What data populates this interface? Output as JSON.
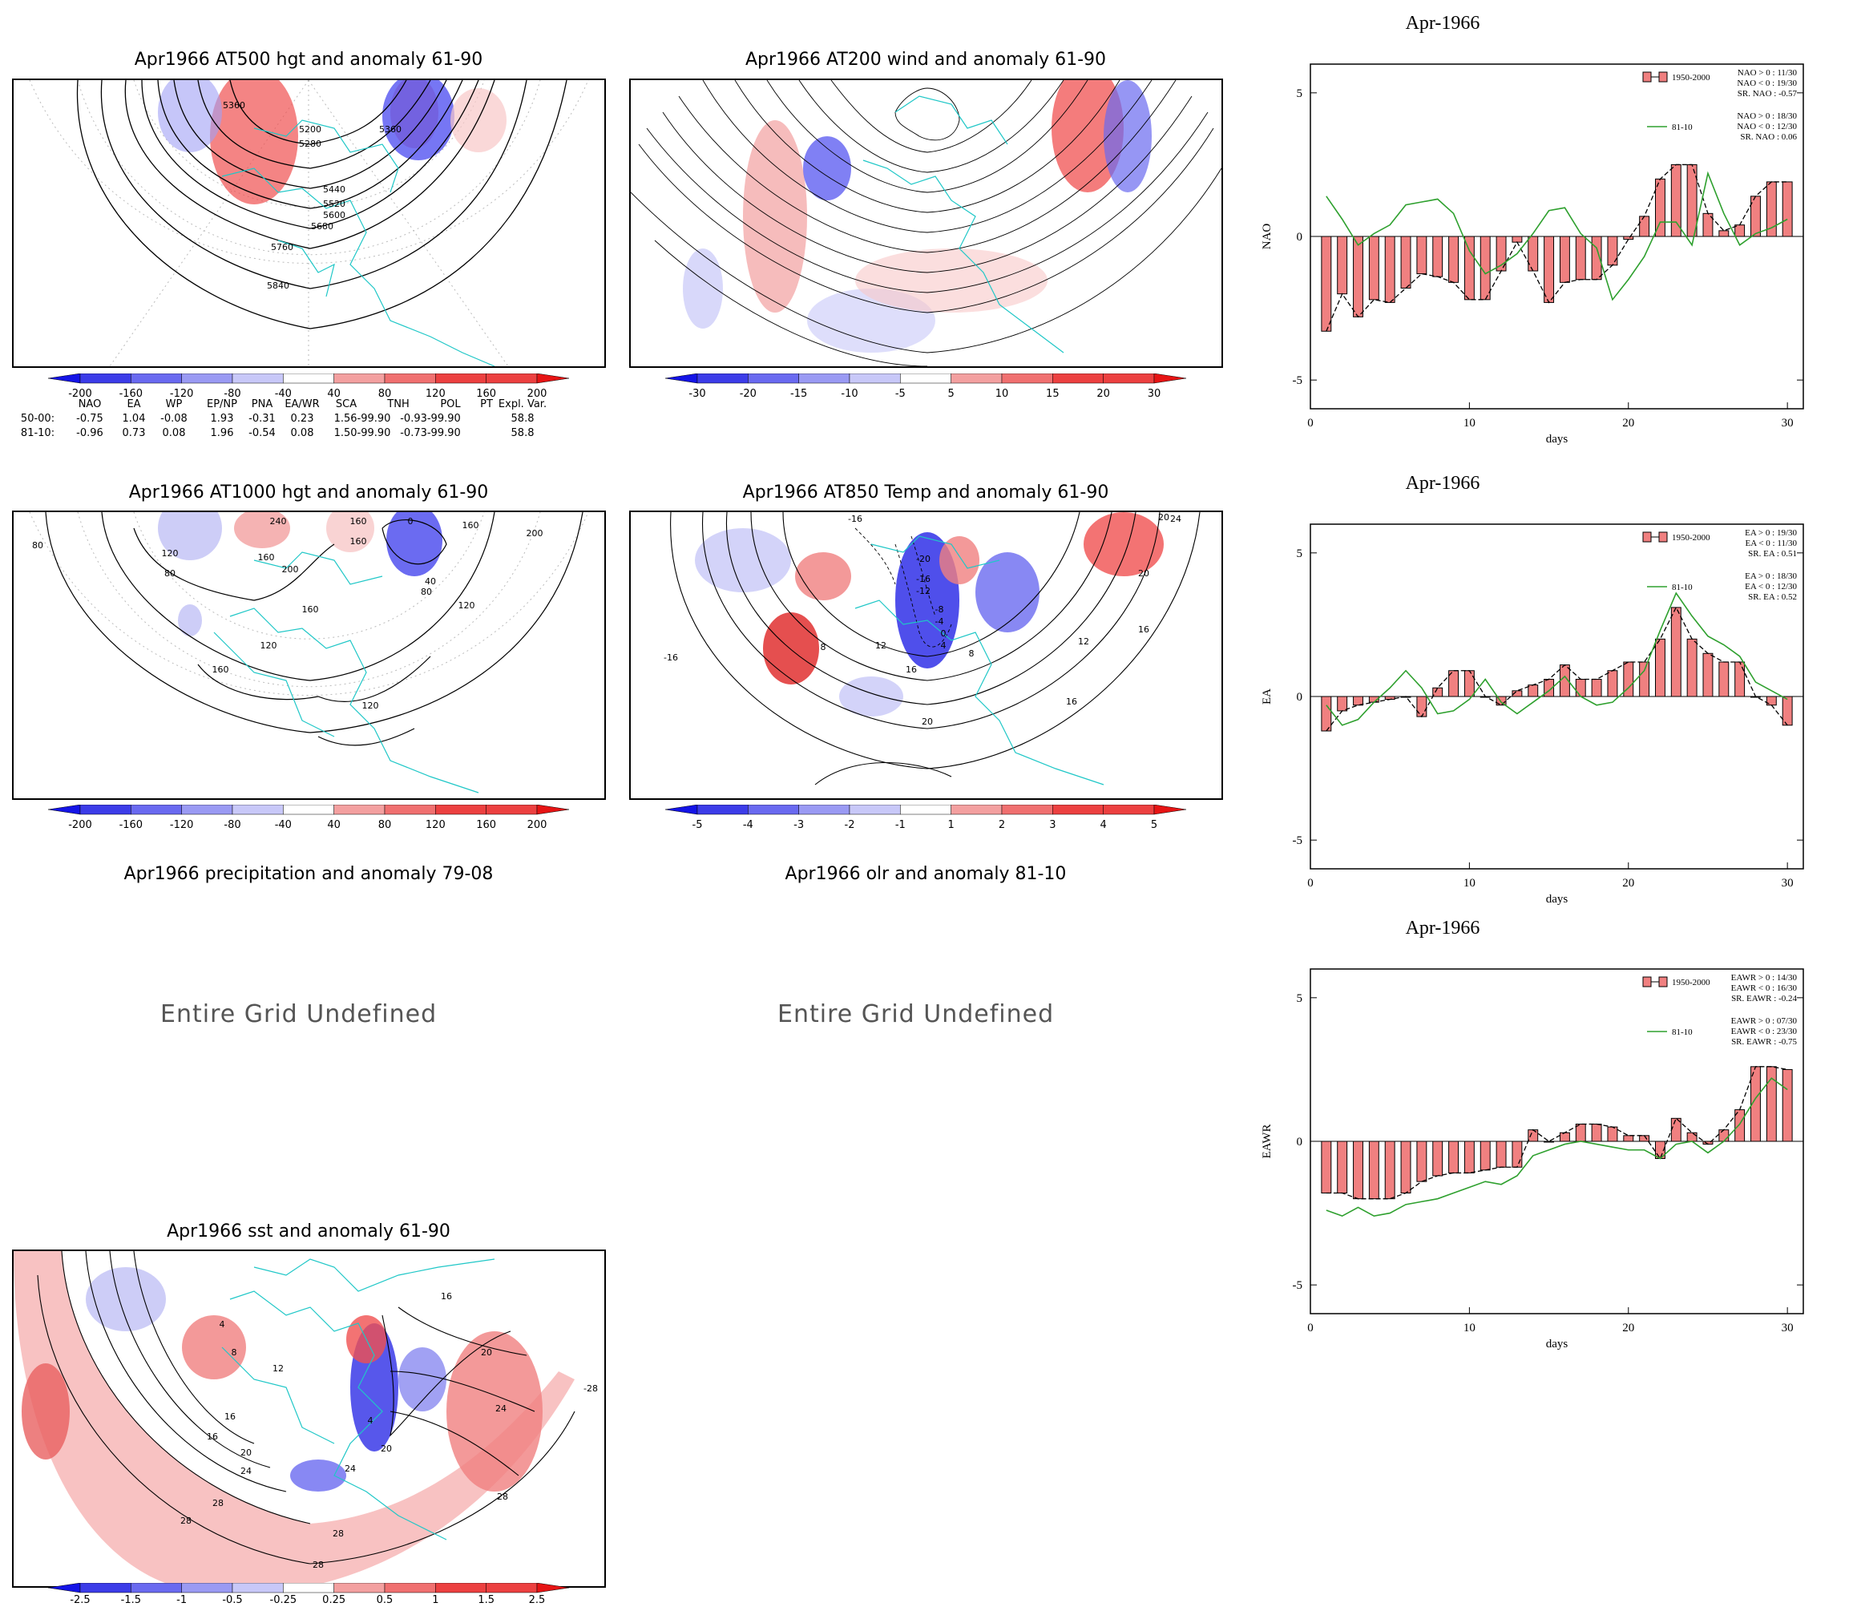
{
  "maps": [
    {
      "id": "at500",
      "title": "Apr1966 AT500 hgt and anomaly 61-90",
      "colorbar": [
        "-200",
        "-160",
        "-120",
        "-80",
        "-40",
        "40",
        "80",
        "120",
        "160",
        "200"
      ],
      "contour_labels": [
        "5360",
        "5200",
        "5280",
        "5360",
        "5440",
        "5520",
        "5600",
        "5680",
        "5760",
        "5840"
      ]
    },
    {
      "id": "at200",
      "title": "Apr1966 AT200 wind and anomaly 61-90",
      "colorbar": [
        "-30",
        "-20",
        "-15",
        "-10",
        "-5",
        "5",
        "10",
        "15",
        "20",
        "30"
      ]
    },
    {
      "id": "at1000",
      "title": "Apr1966 AT1000 hgt and anomaly 61-90",
      "colorbar": [
        "-200",
        "-160",
        "-120",
        "-80",
        "-40",
        "40",
        "80",
        "120",
        "160",
        "200"
      ],
      "contour_labels": [
        "80",
        "240",
        "160",
        "0",
        "160",
        "200",
        "120",
        "160",
        "200",
        "40",
        "80",
        "160",
        "120",
        "160",
        "120",
        "80",
        "120",
        "160"
      ]
    },
    {
      "id": "at850",
      "title": "Apr1966 AT850 Temp and anomaly 61-90",
      "colorbar": [
        "-5",
        "-4",
        "-3",
        "-2",
        "-1",
        "1",
        "2",
        "3",
        "4",
        "5"
      ],
      "contour_labels": [
        "-16",
        "-20",
        "-16",
        "-12",
        "-8",
        "-4",
        "0",
        "4",
        "8",
        "12",
        "16",
        "20",
        "12",
        "16",
        "20",
        "-16",
        "8",
        "16",
        "24",
        "20"
      ]
    },
    {
      "id": "precip",
      "title": "Apr1966 precipitation and anomaly 79-08",
      "undefined_text": "Entire Grid Undefined"
    },
    {
      "id": "olr",
      "title": "Apr1966 olr and anomaly 81-10",
      "undefined_text": "Entire Grid Undefined"
    },
    {
      "id": "sst",
      "title": "Apr1966 sst and anomaly 61-90",
      "colorbar": [
        "-2.5",
        "-1.5",
        "-1",
        "-0.5",
        "-0.25",
        "0.25",
        "0.5",
        "1",
        "1.5",
        "2.5"
      ],
      "contour_labels": [
        "16",
        "4",
        "8",
        "12",
        "20",
        "24",
        "28",
        "4",
        "20",
        "24",
        "28",
        "28",
        "16",
        "20",
        "24",
        "-28",
        "28",
        "16",
        "28"
      ]
    }
  ],
  "teleconnections": {
    "headers": [
      "NAO",
      "EA",
      "WP",
      "EP/NP",
      "PNA",
      "EA/WR",
      "SCA",
      "TNH",
      "POL",
      "PT",
      "Expl. Var."
    ],
    "rows": [
      {
        "label": "50-00:",
        "values": [
          "-0.75",
          "1.04",
          "-0.08",
          "1.93",
          "-0.31",
          "0.23",
          "1.56-99.90",
          "-0.93-99.90",
          "",
          "",
          "58.8"
        ]
      },
      {
        "label": "81-10:",
        "values": [
          "-0.96",
          "0.73",
          "0.08",
          "1.96",
          "-0.54",
          "0.08",
          "1.50-99.90",
          "-0.73-99.90",
          "",
          "",
          "58.8"
        ]
      }
    ]
  },
  "colors": {
    "coast": "#1fc7c7",
    "pos_dark": "#f03c3c",
    "neg_dark": "#2a2ae0",
    "bar": "#f08080",
    "line": "#2ea02e"
  },
  "chart_data": [
    {
      "type": "bar",
      "title": "Apr-1966",
      "ylabel": "NAO",
      "xlabel": "days",
      "ylim": [
        -6,
        6
      ],
      "xlim": [
        0,
        31
      ],
      "yticks": [
        "5",
        "0",
        "-5"
      ],
      "xticks": [
        "0",
        "10",
        "20",
        "30"
      ],
      "legend": {
        "bar_label": "1950-2000",
        "line_label": "81-10",
        "stats1": [
          "NAO > 0 : 11/30",
          "NAO < 0 : 19/30",
          "SR. NAO : -0.57"
        ],
        "stats2": [
          "NAO > 0 : 18/30",
          "NAO < 0 : 12/30",
          "SR. NAO : 0.06"
        ]
      },
      "x": [
        1,
        2,
        3,
        4,
        5,
        6,
        7,
        8,
        9,
        10,
        11,
        12,
        13,
        14,
        15,
        16,
        17,
        18,
        19,
        20,
        21,
        22,
        23,
        24,
        25,
        26,
        27,
        28,
        29,
        30
      ],
      "series": [
        {
          "name": "1950-2000",
          "values": [
            -3.3,
            -2.0,
            -2.8,
            -2.2,
            -2.3,
            -1.8,
            -1.3,
            -1.4,
            -1.6,
            -2.2,
            -2.2,
            -1.2,
            -0.2,
            -1.2,
            -2.3,
            -1.6,
            -1.5,
            -1.5,
            -1.0,
            -0.1,
            0.7,
            2.0,
            2.5,
            2.5,
            0.8,
            0.2,
            0.4,
            1.4,
            1.9,
            1.9
          ]
        },
        {
          "name": "81-10",
          "values": [
            1.4,
            0.6,
            -0.3,
            0.1,
            0.4,
            1.1,
            1.2,
            1.3,
            0.8,
            -0.5,
            -1.3,
            -1.0,
            -0.6,
            0.1,
            0.9,
            1.0,
            0.1,
            -0.4,
            -2.2,
            -1.5,
            -0.7,
            0.5,
            0.5,
            -0.3,
            2.2,
            0.8,
            -0.3,
            0.1,
            0.3,
            0.6
          ]
        }
      ]
    },
    {
      "type": "bar",
      "title": "Apr-1966",
      "ylabel": "EA",
      "xlabel": "days",
      "ylim": [
        -6,
        6
      ],
      "xlim": [
        0,
        31
      ],
      "yticks": [
        "5",
        "0",
        "-5"
      ],
      "xticks": [
        "0",
        "10",
        "20",
        "30"
      ],
      "legend": {
        "bar_label": "1950-2000",
        "line_label": "81-10",
        "stats1": [
          "EA > 0 : 19/30",
          "EA < 0 : 11/30",
          "SR. EA : 0.51"
        ],
        "stats2": [
          "EA > 0 : 18/30",
          "EA < 0 : 12/30",
          "SR. EA : 0.52"
        ]
      },
      "x": [
        1,
        2,
        3,
        4,
        5,
        6,
        7,
        8,
        9,
        10,
        11,
        12,
        13,
        14,
        15,
        16,
        17,
        18,
        19,
        20,
        21,
        22,
        23,
        24,
        25,
        26,
        27,
        28,
        29,
        30
      ],
      "series": [
        {
          "name": "1950-2000",
          "values": [
            -1.2,
            -0.5,
            -0.3,
            -0.2,
            -0.1,
            0.0,
            -0.7,
            0.3,
            0.9,
            0.9,
            0.0,
            -0.3,
            0.2,
            0.4,
            0.6,
            1.1,
            0.6,
            0.6,
            0.9,
            1.2,
            1.2,
            2.0,
            3.1,
            2.0,
            1.5,
            1.2,
            1.2,
            0.0,
            -0.3,
            -1.0
          ]
        },
        {
          "name": "81-10",
          "values": [
            -0.3,
            -1.0,
            -0.8,
            -0.2,
            0.3,
            0.9,
            0.3,
            -0.6,
            -0.5,
            -0.1,
            0.6,
            -0.2,
            -0.6,
            -0.2,
            0.2,
            0.7,
            0.0,
            -0.3,
            -0.2,
            0.3,
            0.9,
            2.3,
            3.6,
            2.8,
            2.1,
            1.8,
            1.4,
            0.5,
            0.2,
            -0.1
          ]
        }
      ]
    },
    {
      "type": "bar",
      "title": "Apr-1966",
      "ylabel": "EAWR",
      "xlabel": "days",
      "ylim": [
        -6,
        6
      ],
      "xlim": [
        0,
        31
      ],
      "yticks": [
        "5",
        "0",
        "-5"
      ],
      "xticks": [
        "0",
        "10",
        "20",
        "30"
      ],
      "legend": {
        "bar_label": "1950-2000",
        "line_label": "81-10",
        "stats1": [
          "EAWR > 0 : 14/30",
          "EAWR < 0 : 16/30",
          "SR. EAWR : -0.24"
        ],
        "stats2": [
          "EAWR > 0 : 07/30",
          "EAWR < 0 : 23/30",
          "SR. EAWR : -0.75"
        ]
      },
      "x": [
        1,
        2,
        3,
        4,
        5,
        6,
        7,
        8,
        9,
        10,
        11,
        12,
        13,
        14,
        15,
        16,
        17,
        18,
        19,
        20,
        21,
        22,
        23,
        24,
        25,
        26,
        27,
        28,
        29,
        30
      ],
      "series": [
        {
          "name": "1950-2000",
          "values": [
            -1.8,
            -1.8,
            -2.0,
            -2.0,
            -2.0,
            -1.8,
            -1.4,
            -1.2,
            -1.1,
            -1.1,
            -1.0,
            -0.9,
            -0.9,
            0.4,
            0.0,
            0.3,
            0.6,
            0.6,
            0.5,
            0.2,
            0.2,
            -0.6,
            0.8,
            0.3,
            -0.1,
            0.4,
            1.1,
            2.6,
            2.6,
            2.5
          ]
        },
        {
          "name": "81-10",
          "values": [
            -2.4,
            -2.6,
            -2.3,
            -2.6,
            -2.5,
            -2.2,
            -2.1,
            -2.0,
            -1.8,
            -1.6,
            -1.4,
            -1.5,
            -1.2,
            -0.5,
            -0.3,
            -0.1,
            0.0,
            -0.1,
            -0.2,
            -0.3,
            -0.3,
            -0.6,
            -0.1,
            0.0,
            -0.4,
            0.0,
            0.6,
            1.5,
            2.2,
            1.8
          ]
        }
      ]
    }
  ]
}
